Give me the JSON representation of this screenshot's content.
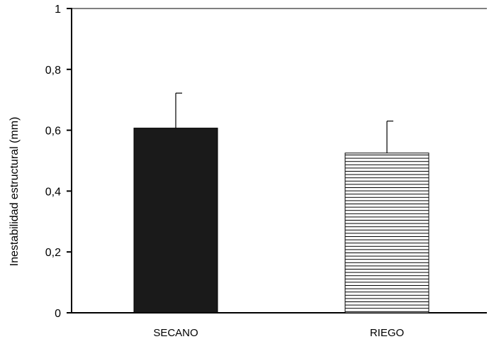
{
  "chart_data": {
    "type": "bar",
    "title": "",
    "xlabel": "",
    "ylabel": "Inestabilidad estructural (mm)",
    "ylim": [
      0,
      1
    ],
    "yticks": [
      {
        "value": 0,
        "label": "0"
      },
      {
        "value": 0.2,
        "label": "0,2"
      },
      {
        "value": 0.4,
        "label": "0,4"
      },
      {
        "value": 0.6,
        "label": "0,6"
      },
      {
        "value": 0.8,
        "label": "0,8"
      },
      {
        "value": 1,
        "label": "1"
      }
    ],
    "categories": [
      "SECANO",
      "RIEGO"
    ],
    "values": [
      0.607,
      0.525
    ],
    "error_upper": [
      0.722,
      0.63
    ],
    "bar_styles": [
      {
        "fill": "#1a1a1a",
        "pattern": "solid"
      },
      {
        "fill": "#ffffff",
        "pattern": "horizontal-lines"
      }
    ],
    "grid": false,
    "legend": "none"
  }
}
